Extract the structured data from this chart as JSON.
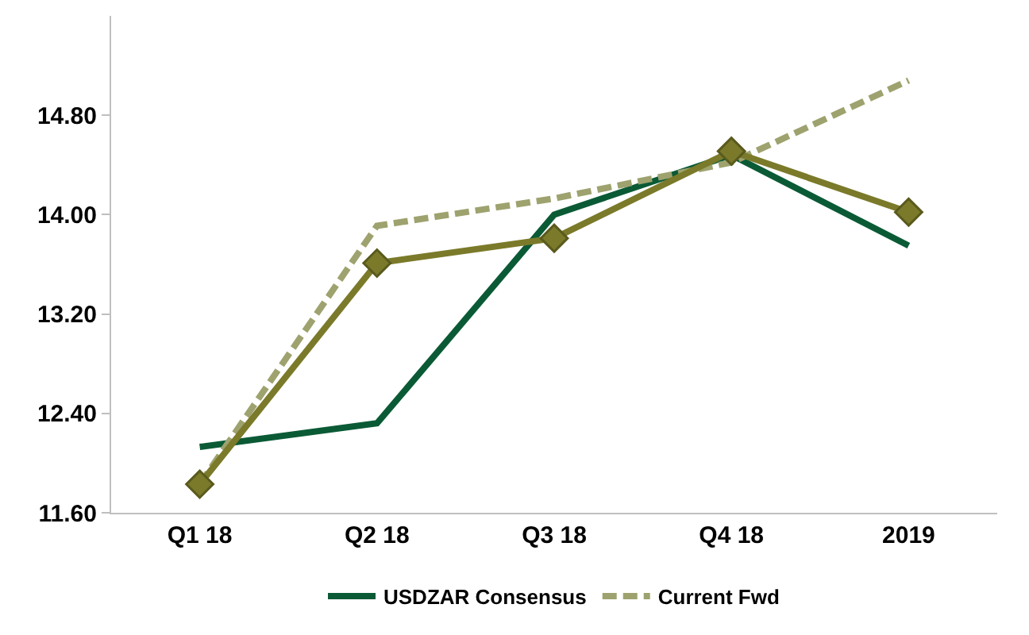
{
  "chart_data": {
    "type": "line",
    "categories": [
      "Q1 18",
      "Q2 18",
      "Q3 18",
      "Q4 18",
      "2019"
    ],
    "series": [
      {
        "name": "USDZAR Consensus",
        "color": "#0b5a36",
        "values": [
          12.13,
          12.32,
          14.0,
          14.48,
          13.75
        ],
        "marker": "none",
        "line_style": "solid"
      },
      {
        "name": "Current Fwd",
        "color": "#9ea26e",
        "values": [
          11.83,
          13.91,
          14.13,
          14.42,
          15.08
        ],
        "marker": "none",
        "line_style": "dashed"
      },
      {
        "color": "#7a7a2a",
        "values": [
          11.83,
          13.61,
          13.81,
          14.51,
          14.02
        ],
        "marker": "diamond",
        "line_style": "solid"
      }
    ],
    "ylim": [
      11.6,
      15.6
    ],
    "yticks": [
      {
        "value": 11.6,
        "label": "11.60"
      },
      {
        "value": 12.4,
        "label": "12.40"
      },
      {
        "value": 13.2,
        "label": "13.20"
      },
      {
        "value": 14.0,
        "label": "14.00"
      },
      {
        "value": 14.8,
        "label": "14.80"
      }
    ],
    "legend": "bottom"
  }
}
